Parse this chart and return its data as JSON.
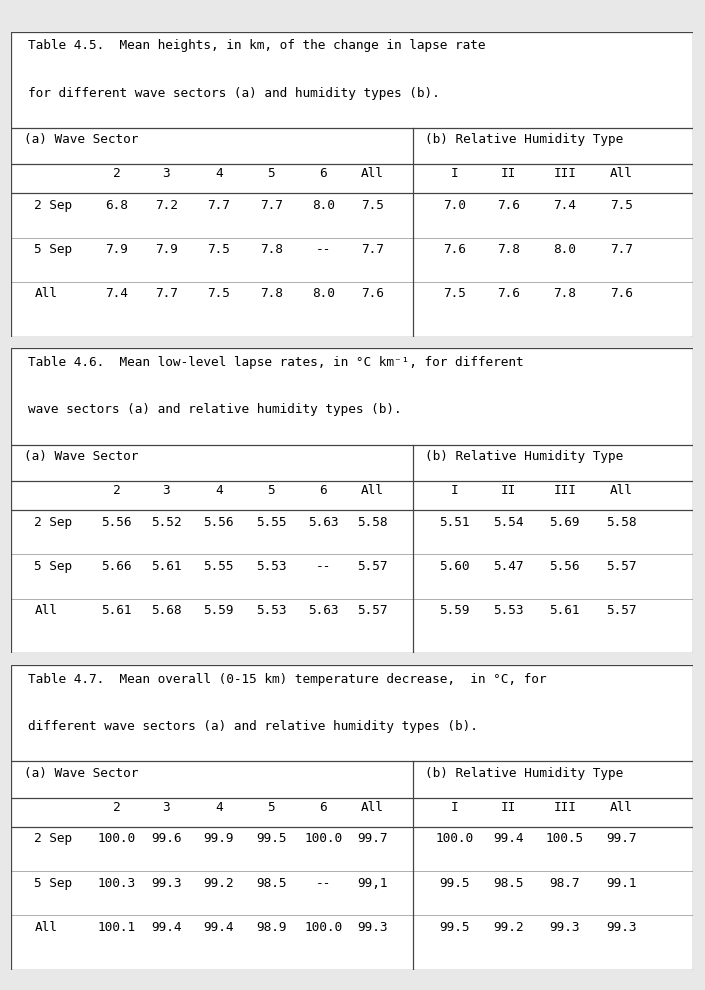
{
  "tables": [
    {
      "title_line1": "Table 4.5.  Mean heights, in km, of the change in lapse rate",
      "title_line2": "for different wave sectors (a) and humidity types (b).",
      "left_header": "(a) Wave Sector",
      "right_header": "(b) Relative Humidity Type",
      "col_headers_left": [
        "2",
        "3",
        "4",
        "5",
        "6",
        "All"
      ],
      "col_headers_right": [
        "I",
        "II",
        "III",
        "All"
      ],
      "rows": [
        {
          "label": "2 Sep",
          "left": [
            "6.8",
            "7.2",
            "7.7",
            "7.7",
            "8.0",
            "7.5"
          ],
          "right": [
            "7.0",
            "7.6",
            "7.4",
            "7.5"
          ]
        },
        {
          "label": "5 Sep",
          "left": [
            "7.9",
            "7.9",
            "7.5",
            "7.8",
            "--",
            "7.7"
          ],
          "right": [
            "7.6",
            "7.8",
            "8.0",
            "7.7"
          ]
        },
        {
          "label": "All",
          "left": [
            "7.4",
            "7.7",
            "7.5",
            "7.8",
            "8.0",
            "7.6"
          ],
          "right": [
            "7.5",
            "7.6",
            "7.8",
            "7.6"
          ]
        }
      ]
    },
    {
      "title_line1": "Table 4.6.  Mean low-level lapse rates, in °C km⁻¹, for different",
      "title_line2": "wave sectors (a) and relative humidity types (b).",
      "left_header": "(a) Wave Sector",
      "right_header": "(b) Relative Humidity Type",
      "col_headers_left": [
        "2",
        "3",
        "4",
        "5",
        "6",
        "All"
      ],
      "col_headers_right": [
        "I",
        "II",
        "III",
        "All"
      ],
      "rows": [
        {
          "label": "2 Sep",
          "left": [
            "5.56",
            "5.52",
            "5.56",
            "5.55",
            "5.63",
            "5.58"
          ],
          "right": [
            "5.51",
            "5.54",
            "5.69",
            "5.58"
          ]
        },
        {
          "label": "5 Sep",
          "left": [
            "5.66",
            "5.61",
            "5.55",
            "5.53",
            "--",
            "5.57"
          ],
          "right": [
            "5.60",
            "5.47",
            "5.56",
            "5.57"
          ]
        },
        {
          "label": "All",
          "left": [
            "5.61",
            "5.68",
            "5.59",
            "5.53",
            "5.63",
            "5.57"
          ],
          "right": [
            "5.59",
            "5.53",
            "5.61",
            "5.57"
          ]
        }
      ]
    },
    {
      "title_line1": "Table 4.7.  Mean overall (0-15 km) temperature decrease,  in °C, for",
      "title_line2": "different wave sectors (a) and relative humidity types (b).",
      "left_header": "(a) Wave Sector",
      "right_header": "(b) Relative Humidity Type",
      "col_headers_left": [
        "2",
        "3",
        "4",
        "5",
        "6",
        "All"
      ],
      "col_headers_right": [
        "I",
        "II",
        "III",
        "All"
      ],
      "rows": [
        {
          "label": "2 Sep",
          "left": [
            "100.0",
            "99.6",
            "99.9",
            "99.5",
            "100.0",
            "99.7"
          ],
          "right": [
            "100.0",
            "99.4",
            "100.5",
            "99.7"
          ]
        },
        {
          "label": "5 Sep",
          "left": [
            "100.3",
            "99.3",
            "99.2",
            "98.5",
            "--",
            "99,1"
          ],
          "right": [
            "99.5",
            "98.5",
            "98.7",
            "99.1"
          ]
        },
        {
          "label": "All",
          "left": [
            "100.1",
            "99.4",
            "99.4",
            "98.9",
            "100.0",
            "99.3"
          ],
          "right": [
            "99.5",
            "99.2",
            "99.3",
            "99.3"
          ]
        }
      ]
    }
  ],
  "bg_color": "#e8e8e8",
  "table_bg": "#ffffff",
  "font_family": "monospace",
  "title_fontsize": 9.2,
  "data_fontsize": 9.2,
  "line_color": "#444444"
}
